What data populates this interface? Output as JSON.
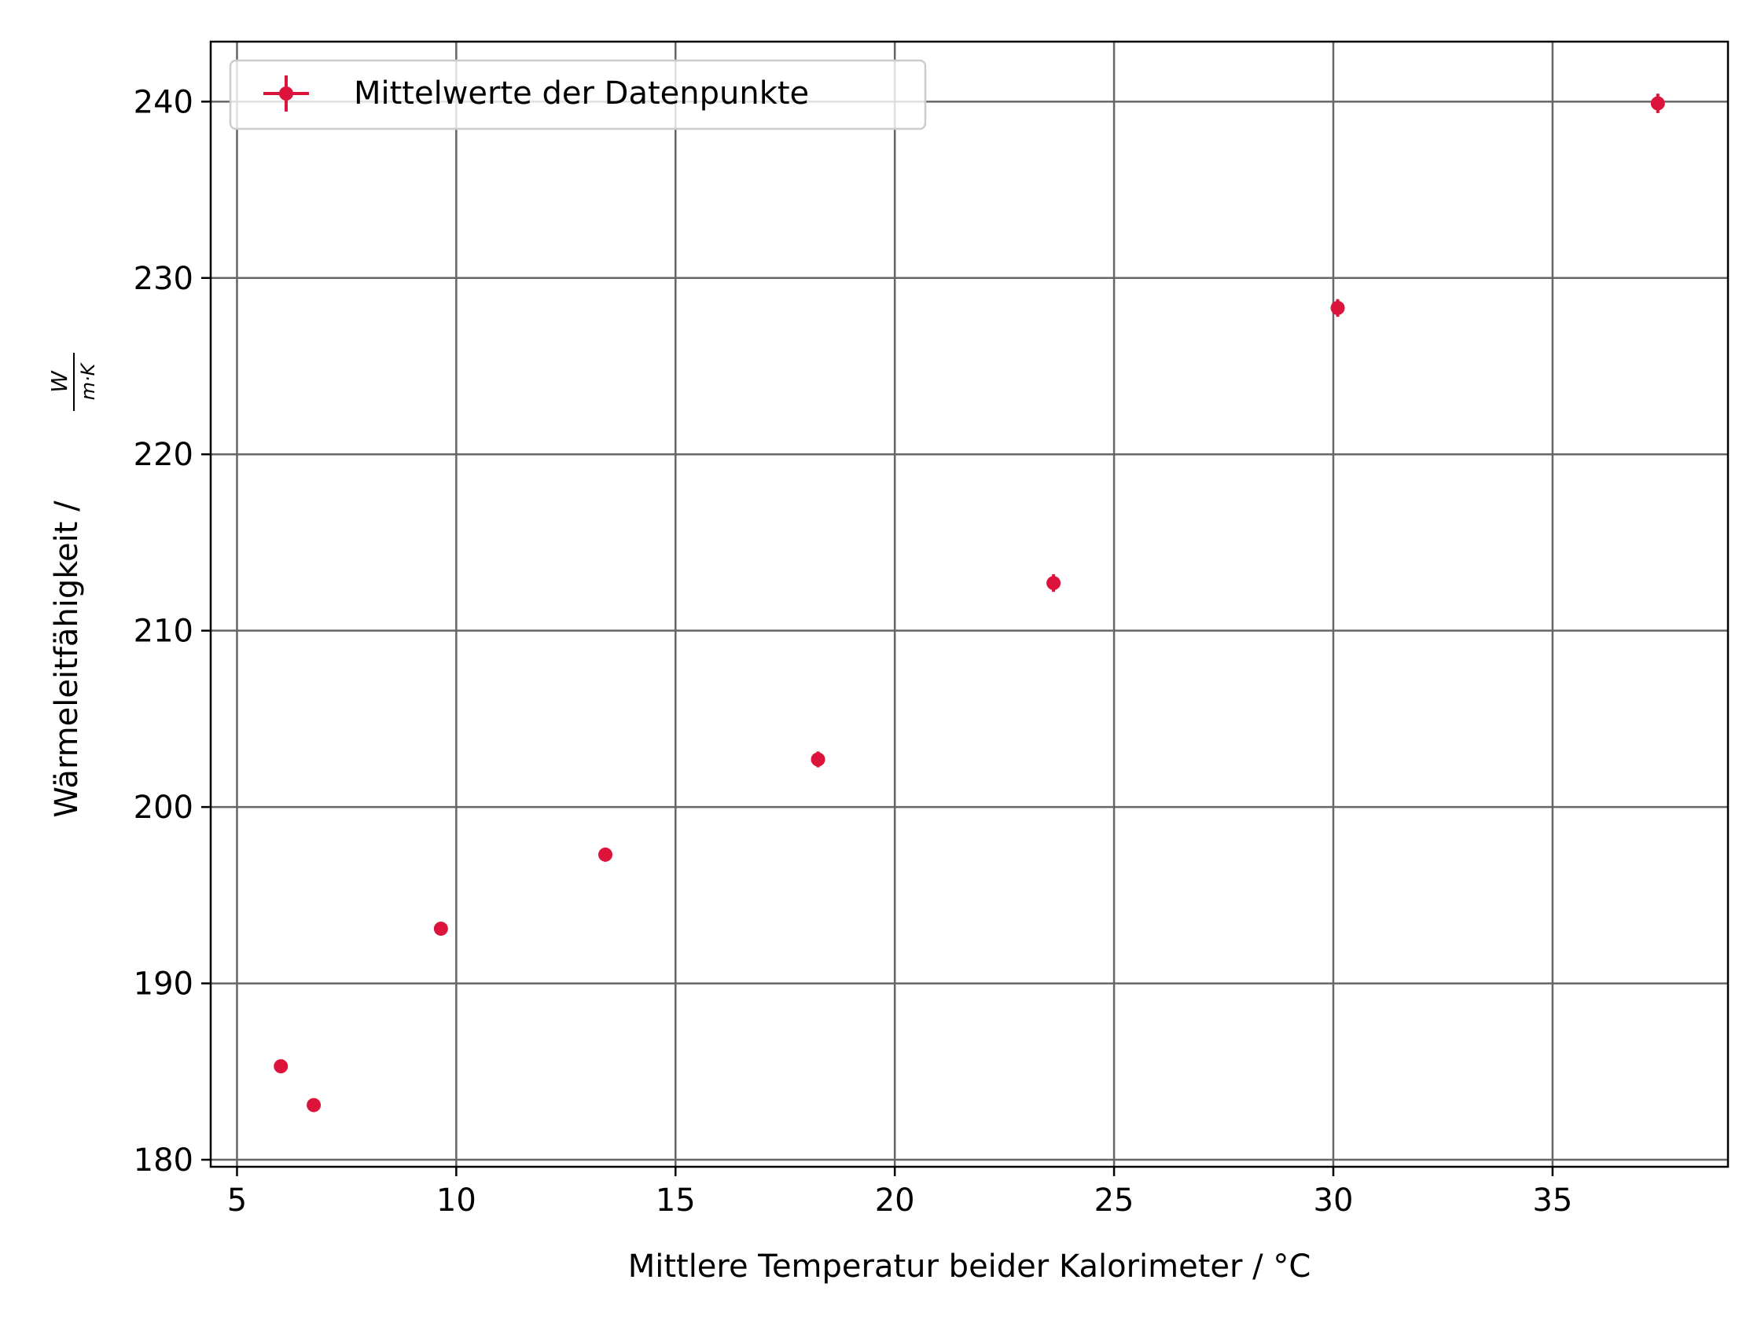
{
  "chart_data": {
    "type": "scatter",
    "xlabel": "Mittlere Temperatur beider Kalorimeter / °C",
    "ylabel": "Wärmeleitfähigkeit / ",
    "ylabel_unit_numerator": "W",
    "ylabel_unit_denominator": "m·K",
    "xlim": [
      4.4,
      39.0
    ],
    "ylim": [
      179.6,
      243.4
    ],
    "xticks": [
      5,
      10,
      15,
      20,
      25,
      30,
      35
    ],
    "yticks": [
      180,
      190,
      200,
      210,
      220,
      230,
      240
    ],
    "xtick_labels": [
      "5",
      "10",
      "15",
      "20",
      "25",
      "30",
      "35"
    ],
    "ytick_labels": [
      "180",
      "190",
      "200",
      "210",
      "220",
      "230",
      "240"
    ],
    "grid": true,
    "legend_position": "top-left",
    "series": [
      {
        "name": "Mittelwerte der Datenpunkte",
        "color": "#dc143c",
        "marker": "point-with-errorbars",
        "x": [
          6.0,
          6.75,
          9.65,
          13.4,
          18.25,
          23.62,
          30.1,
          37.4
        ],
        "y": [
          185.3,
          183.1,
          193.1,
          197.3,
          202.7,
          212.7,
          228.3,
          239.9
        ],
        "yerr": [
          0.25,
          0.25,
          0.3,
          0.4,
          0.45,
          0.5,
          0.5,
          0.55
        ]
      }
    ]
  }
}
